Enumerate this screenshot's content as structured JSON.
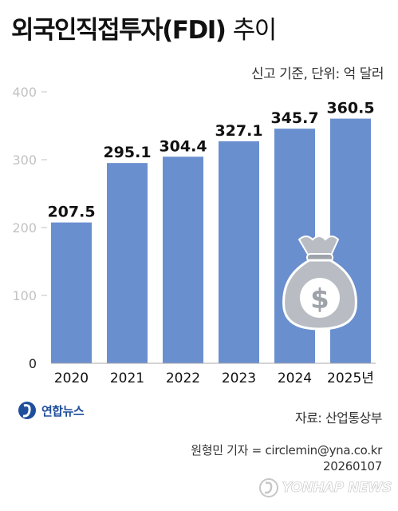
{
  "header": {
    "title_main": "외국인직접투자(FDI)",
    "title_sub": "추이",
    "unit_note": "신고 기준, 단위: 억 달러"
  },
  "chart_data": {
    "type": "bar",
    "title": "외국인직접투자(FDI) 추이",
    "categories": [
      "2020",
      "2021",
      "2022",
      "2023",
      "2024",
      "2025년"
    ],
    "values": [
      207.5,
      295.1,
      304.4,
      327.1,
      345.7,
      360.5
    ],
    "value_labels": [
      "207.5",
      "295.1",
      "304.4",
      "327.1",
      "345.7",
      "360.5"
    ],
    "yticks": [
      "0",
      "100",
      "200",
      "300",
      "400"
    ],
    "ylim": [
      0,
      400
    ],
    "unit": "억 달러",
    "bar_color": "#6a8fcf",
    "grid": false
  },
  "footer": {
    "logo_text": "연합뉴스",
    "source": "자료: 산업통상부",
    "reporter": "원형민 기자 = circlemin@yna.co.kr",
    "date": "20260107",
    "watermark": "YONHAP NEWS"
  },
  "icons": {
    "decoration": "money-bag-icon",
    "logo": "yonhap-logo-icon"
  }
}
